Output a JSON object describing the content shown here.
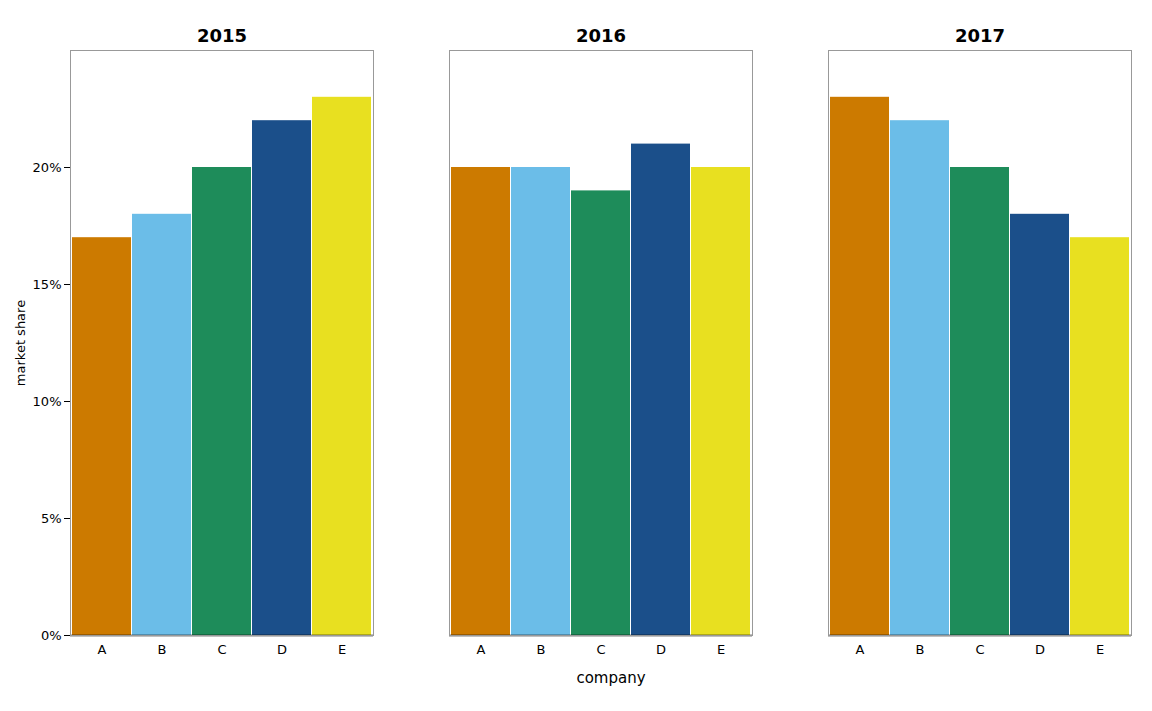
{
  "chart_data": {
    "type": "bar",
    "categories": [
      "2015",
      "2016",
      "2017"
    ],
    "series": [
      {
        "name": "A",
        "color": "#CC7A00",
        "values": [
          0.17,
          0.2,
          0.23
        ]
      },
      {
        "name": "B",
        "color": "#6BBDE8",
        "values": [
          0.18,
          0.2,
          0.22
        ]
      },
      {
        "name": "C",
        "color": "#1E8C5A",
        "values": [
          0.2,
          0.19,
          0.2
        ]
      },
      {
        "name": "D",
        "color": "#1B4F8A",
        "values": [
          0.22,
          0.21,
          0.18
        ]
      },
      {
        "name": "E",
        "color": "#E8E020",
        "values": [
          0.23,
          0.2,
          0.17
        ]
      }
    ],
    "xlabel": "company",
    "ylabel": "market share",
    "ylim": [
      0,
      0.25
    ],
    "yticks": [
      {
        "value": 0.0,
        "label": "0%"
      },
      {
        "value": 0.05,
        "label": "5%"
      },
      {
        "value": 0.1,
        "label": "10%"
      },
      {
        "value": 0.15,
        "label": "15%"
      },
      {
        "value": 0.2,
        "label": "20%"
      }
    ]
  }
}
